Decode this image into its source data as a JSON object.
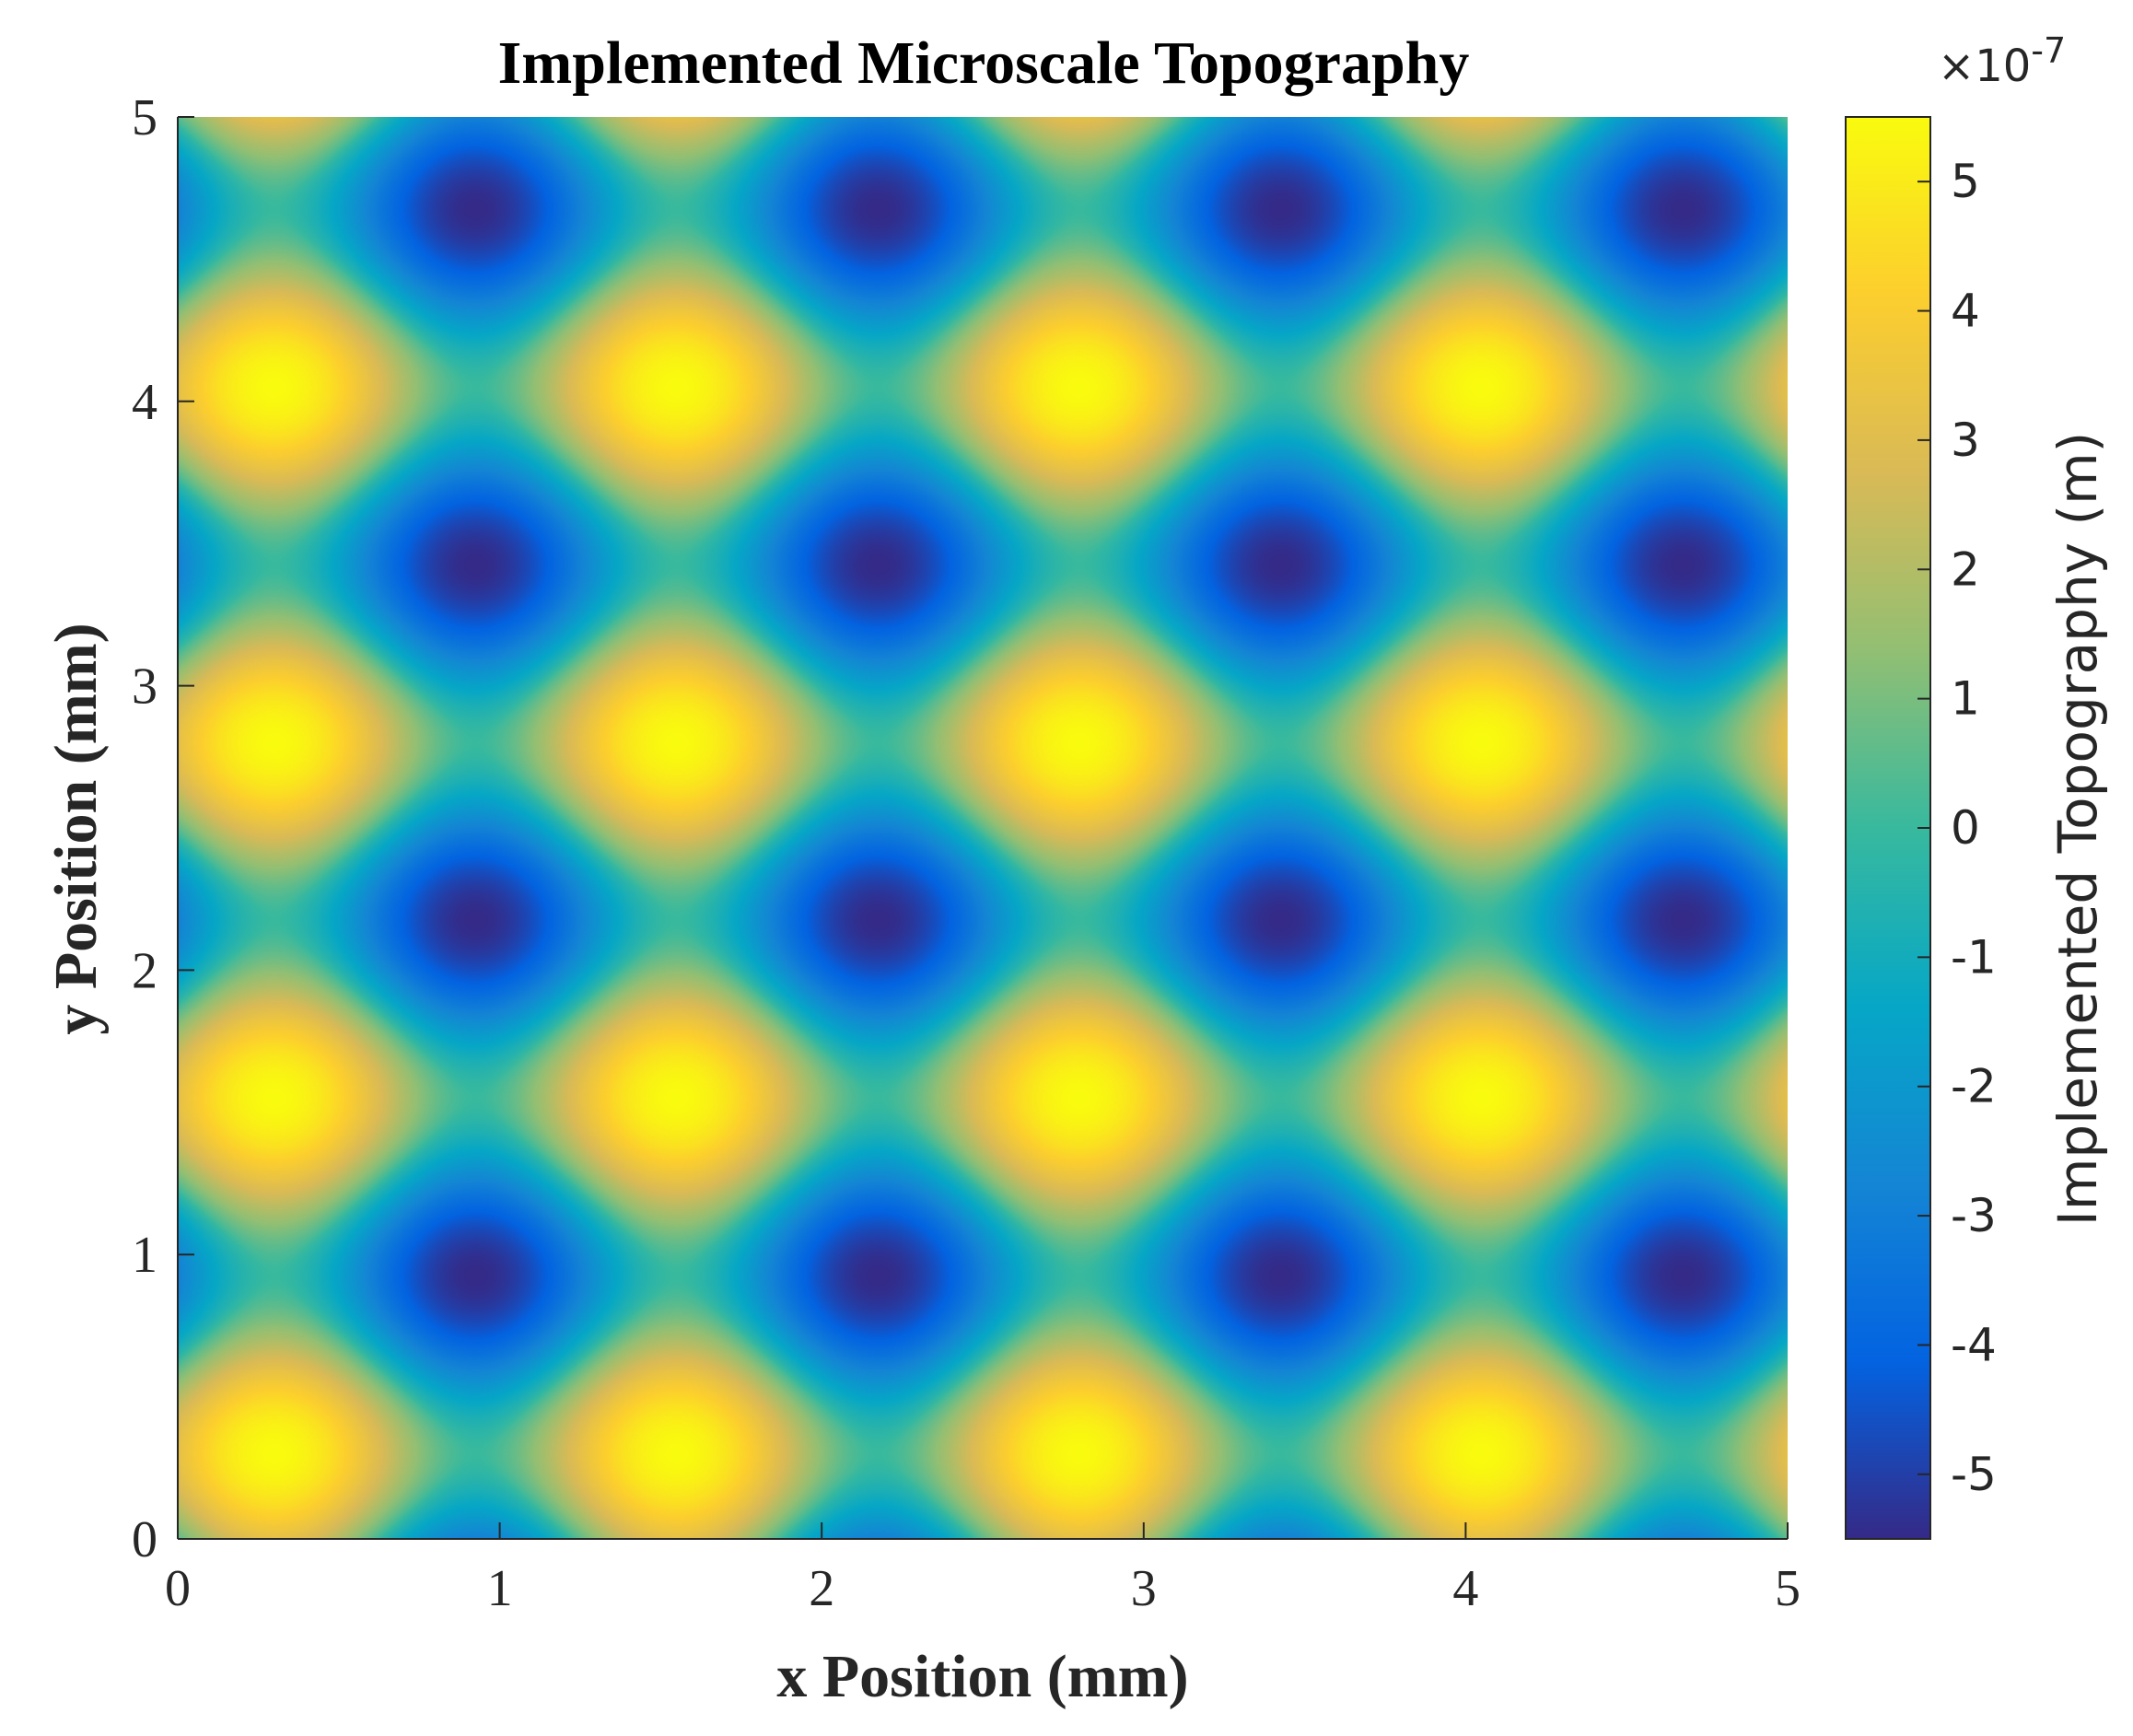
{
  "chart_data": {
    "type": "heatmap",
    "title": "Implemented Microscale Topography",
    "xlabel": "x Position (mm)",
    "ylabel": "y Position (mm)",
    "xlim": [
      0,
      5
    ],
    "ylim": [
      0,
      5
    ],
    "xticks": [
      0,
      1,
      2,
      3,
      4,
      5
    ],
    "yticks": [
      0,
      1,
      2,
      3,
      4,
      5
    ],
    "x_tick_labels": [
      "0",
      "1",
      "2",
      "3",
      "4",
      "5"
    ],
    "y_tick_labels": [
      "0",
      "1",
      "2",
      "3",
      "4",
      "5"
    ],
    "colormap": "parula",
    "colorbar": {
      "label": "Implemented Topography (m)",
      "exponent_label": "×10",
      "exponent": "-7",
      "clim": [
        -5.5,
        5.5
      ],
      "ticks": [
        -5,
        -4,
        -3,
        -2,
        -1,
        0,
        1,
        2,
        3,
        4,
        5
      ],
      "tick_labels": [
        "-5",
        "-4",
        "-3",
        "-2",
        "-1",
        "0",
        "1",
        "2",
        "3",
        "4",
        "5"
      ]
    },
    "surface_model": {
      "description": "Periodic bump/dimple lattice",
      "x_period_mm": 1.25,
      "y_period_mm": 1.25,
      "peak_positions_x_mm": [
        0.3,
        1.55,
        2.8,
        4.05
      ],
      "peak_positions_y_mm": [
        0.3,
        1.55,
        2.8,
        4.05
      ],
      "valley_positions_x_mm": [
        0.93,
        2.18,
        3.43,
        4.68
      ],
      "valley_positions_y_mm": [
        0.93,
        2.18,
        3.43,
        4.68
      ],
      "peak_value": 5.5,
      "valley_value": -5.5,
      "unit_scale": "1e-7"
    }
  },
  "colors": {
    "parula": [
      "#352a87",
      "#0363e1",
      "#1485d4",
      "#06a7c6",
      "#38b99e",
      "#92bf73",
      "#d9ba56",
      "#fcce2e",
      "#f9fb0e"
    ],
    "axis": "#262626"
  }
}
